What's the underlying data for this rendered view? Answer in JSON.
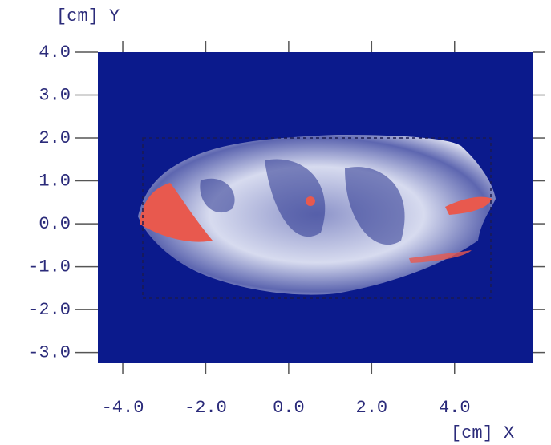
{
  "chart_data": {
    "type": "heatmap",
    "x_label": "[cm] X",
    "y_label": "[cm] Y",
    "xlim": [
      -4.6,
      5.9
    ],
    "ylim": [
      -3.25,
      4.0
    ],
    "xticks": [
      {
        "value": -4,
        "label": "-4.0"
      },
      {
        "value": -2,
        "label": "-2.0"
      },
      {
        "value": 0,
        "label": "0.0"
      },
      {
        "value": 2,
        "label": "2.0"
      },
      {
        "value": 4,
        "label": "4.0"
      }
    ],
    "yticks": [
      {
        "value": 4,
        "label": "4.0"
      },
      {
        "value": 3,
        "label": "3.0"
      },
      {
        "value": 2,
        "label": "2.0"
      },
      {
        "value": 1,
        "label": "1.0"
      },
      {
        "value": 0,
        "label": "0.0"
      },
      {
        "value": -1,
        "label": "-1.0"
      },
      {
        "value": -2,
        "label": "-2.0"
      },
      {
        "value": -3,
        "label": "-3.0"
      }
    ],
    "background_color": "#0b1a8c",
    "label_color": "#2b2b7a"
  }
}
